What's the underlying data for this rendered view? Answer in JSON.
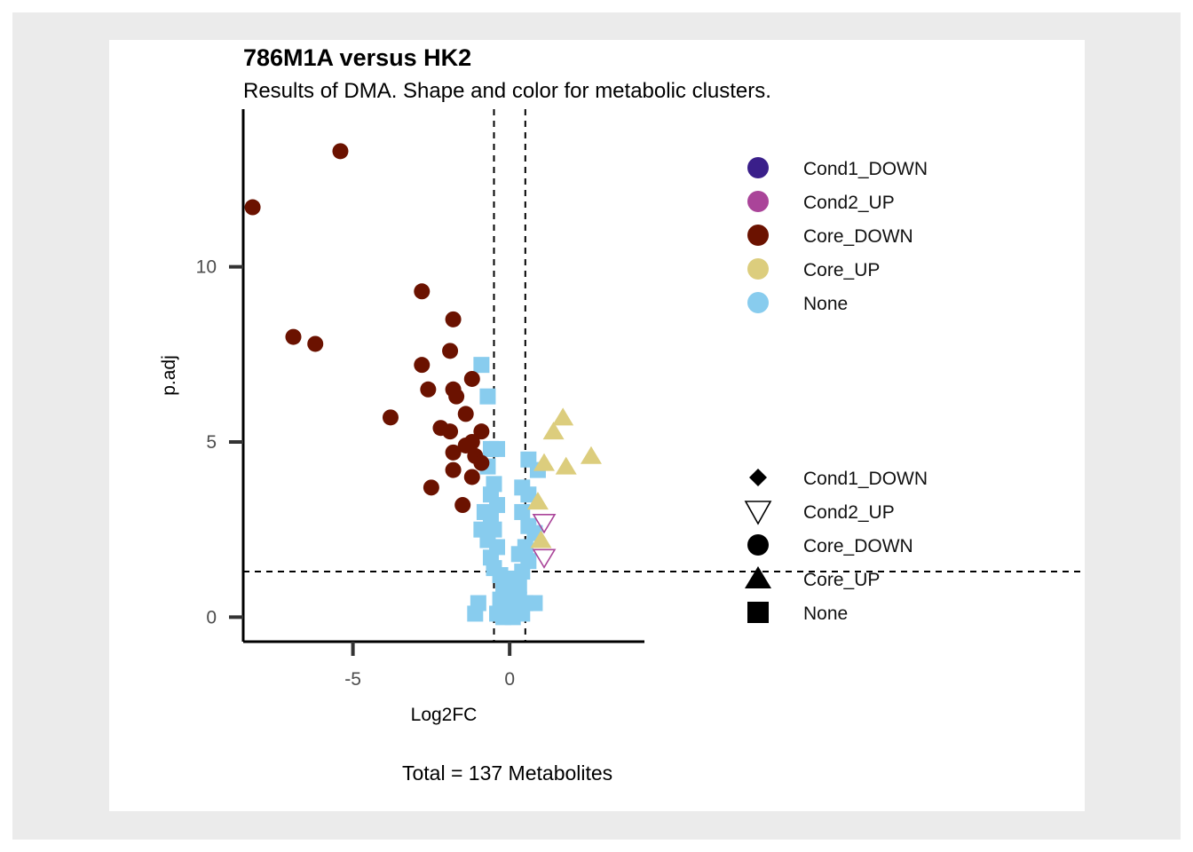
{
  "chart_data": {
    "type": "scatter",
    "title": "786M1A versus HK2",
    "subtitle": "Results of DMA. Shape and color for metabolic clusters.",
    "xlabel": "Log2FC",
    "ylabel": "p.adj",
    "caption": "Total = 137 Metabolites",
    "xlim": [
      -8.5,
      4.3
    ],
    "ylim": [
      -0.7,
      14.5
    ],
    "x_ticks": [
      {
        "value": -5,
        "label": "-5"
      },
      {
        "value": 0,
        "label": "0"
      }
    ],
    "y_ticks": [
      {
        "value": 0,
        "label": "0"
      },
      {
        "value": 5,
        "label": "5"
      },
      {
        "value": 10,
        "label": "10"
      }
    ],
    "cutoffs": {
      "x": [
        -0.5,
        0.5
      ],
      "y": 1.3
    },
    "colors": {
      "Cond1_DOWN": "#3a1f8a",
      "Cond2_UP": "#aa4499",
      "Core_DOWN": "#6b1200",
      "Core_UP": "#dccd7d",
      "None": "#88ccee"
    },
    "shapes": {
      "Cond1_DOWN": "diamond",
      "Cond2_UP": "triangle-down-open",
      "Core_DOWN": "circle",
      "Core_UP": "triangle-up",
      "None": "square"
    },
    "legend_color": {
      "entries": [
        "Cond1_DOWN",
        "Cond2_UP",
        "Core_DOWN",
        "Core_UP",
        "None"
      ],
      "position": "right-top"
    },
    "legend_shape": {
      "entries": [
        "Cond1_DOWN",
        "Cond2_UP",
        "Core_DOWN",
        "Core_UP",
        "None"
      ],
      "position": "right-bottom"
    },
    "series": [
      {
        "name": "Core_DOWN",
        "points": [
          [
            -5.4,
            13.3
          ],
          [
            -8.2,
            11.7
          ],
          [
            -2.8,
            9.3
          ],
          [
            -1.8,
            8.5
          ],
          [
            -6.9,
            8.0
          ],
          [
            -6.2,
            7.8
          ],
          [
            -1.9,
            7.6
          ],
          [
            -2.8,
            7.2
          ],
          [
            -1.2,
            6.8
          ],
          [
            -2.6,
            6.5
          ],
          [
            -1.8,
            6.5
          ],
          [
            -1.7,
            6.3
          ],
          [
            -1.4,
            5.8
          ],
          [
            -3.8,
            5.7
          ],
          [
            -2.2,
            5.4
          ],
          [
            -1.9,
            5.3
          ],
          [
            -0.9,
            5.3
          ],
          [
            -1.2,
            5.0
          ],
          [
            -1.4,
            4.9
          ],
          [
            -1.8,
            4.7
          ],
          [
            -1.1,
            4.6
          ],
          [
            -0.9,
            4.4
          ],
          [
            -1.8,
            4.2
          ],
          [
            -1.2,
            4.0
          ],
          [
            -2.5,
            3.7
          ],
          [
            -1.5,
            3.2
          ]
        ]
      },
      {
        "name": "Core_UP",
        "points": [
          [
            1.7,
            5.7
          ],
          [
            1.4,
            5.3
          ],
          [
            2.6,
            4.6
          ],
          [
            1.1,
            4.4
          ],
          [
            1.8,
            4.3
          ],
          [
            0.9,
            3.3
          ],
          [
            1.0,
            2.2
          ]
        ]
      },
      {
        "name": "Cond2_UP",
        "points": [
          [
            1.1,
            2.7
          ],
          [
            1.1,
            1.7
          ]
        ]
      },
      {
        "name": "None",
        "points": [
          [
            -0.9,
            7.2
          ],
          [
            -0.7,
            6.3
          ],
          [
            -0.6,
            4.8
          ],
          [
            -0.4,
            4.8
          ],
          [
            0.6,
            4.5
          ],
          [
            0.9,
            4.2
          ],
          [
            -0.7,
            4.3
          ],
          [
            -0.5,
            3.8
          ],
          [
            -0.6,
            3.5
          ],
          [
            0.4,
            3.7
          ],
          [
            0.6,
            3.5
          ],
          [
            -0.4,
            3.2
          ],
          [
            -0.8,
            3.0
          ],
          [
            0.4,
            3.0
          ],
          [
            -0.6,
            2.8
          ],
          [
            0.6,
            2.6
          ],
          [
            -0.9,
            2.5
          ],
          [
            -0.5,
            2.5
          ],
          [
            0.8,
            2.4
          ],
          [
            -0.7,
            2.2
          ],
          [
            -0.4,
            2.0
          ],
          [
            0.5,
            2.0
          ],
          [
            0.3,
            1.8
          ],
          [
            -0.6,
            1.7
          ],
          [
            0.6,
            1.6
          ],
          [
            -0.5,
            1.4
          ],
          [
            0.4,
            1.3
          ],
          [
            -0.3,
            1.2
          ],
          [
            0.1,
            1.1
          ],
          [
            -0.1,
            1.0
          ],
          [
            0.3,
            0.9
          ],
          [
            -0.2,
            0.8
          ],
          [
            0.2,
            0.7
          ],
          [
            0.0,
            0.6
          ],
          [
            -0.3,
            0.5
          ],
          [
            0.3,
            0.5
          ],
          [
            -1.0,
            0.4
          ],
          [
            0.5,
            0.4
          ],
          [
            0.8,
            0.4
          ],
          [
            -0.1,
            0.3
          ],
          [
            0.2,
            0.2
          ],
          [
            -1.1,
            0.1
          ],
          [
            -0.4,
            0.1
          ],
          [
            0.0,
            0.05
          ],
          [
            0.4,
            0.1
          ],
          [
            -0.2,
            0.0
          ],
          [
            0.1,
            0.0
          ]
        ]
      }
    ]
  }
}
